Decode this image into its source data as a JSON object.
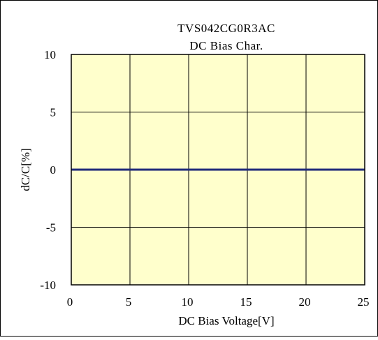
{
  "chart_data": {
    "type": "line",
    "title": "TVS042CG0R3AC",
    "subtitle": "DC Bias Char.",
    "xlabel": "DC Bias Voltage[V]",
    "ylabel": "dC/C[%]",
    "xlim": [
      0,
      25
    ],
    "ylim": [
      -10,
      10
    ],
    "xticks": [
      0,
      5,
      10,
      15,
      20,
      25
    ],
    "yticks": [
      10,
      5,
      0,
      -5,
      -10
    ],
    "x_tick_labels": [
      "0",
      "5",
      "10",
      "15",
      "20",
      "25"
    ],
    "y_tick_labels": [
      "10",
      "5",
      "0",
      "-5",
      "-10"
    ],
    "grid": true,
    "legend": "none",
    "plot_background": "#FFFFCC",
    "series": [
      {
        "color": "#1F2A7A",
        "x": [
          0,
          25
        ],
        "y": [
          0,
          0
        ]
      }
    ]
  }
}
